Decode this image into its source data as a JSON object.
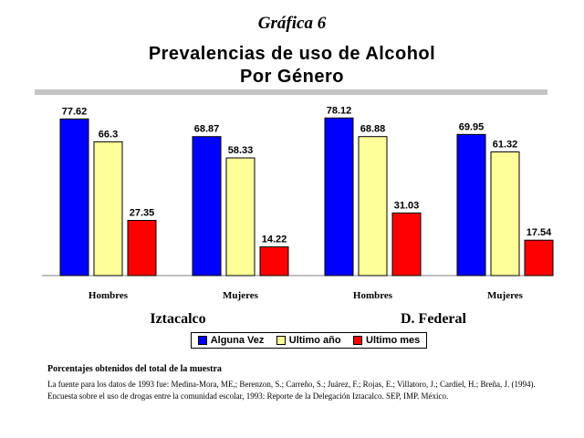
{
  "figure_label": "Gráfica 6",
  "title_line1": "Prevalencias de uso de Alcohol",
  "title_line2": "Por Género",
  "legend": [
    "Alguna Vez",
    "Ultimo año",
    "Ultimo mes"
  ],
  "notes": {
    "heading": "Porcentajes obtenidos del total de la muestra",
    "source": "La fuente para los datos de 1993 fue: Medina-Mora, ME,; Berenzon, S.; Carreño, S.; Juárez, F.; Rojas, E.; Villatoro, J.; Cardiel, H.; Breña, J. (1994). Encuesta sobre el uso de drogas entre la comunidad escolar, 1993: Reporte de la Delegación Iztacalco. SEP, IMP. México."
  },
  "chart_data": {
    "type": "bar",
    "title": "Prevalencias de uso de Alcohol Por Género",
    "categories": [
      "Hombres",
      "Mujeres",
      "Hombres",
      "Mujeres"
    ],
    "groups": [
      "Iztacalco",
      "D. Federal"
    ],
    "series": [
      {
        "name": "Alguna Vez",
        "color": "#0000ff",
        "values": [
          77.62,
          68.87,
          78.12,
          69.95
        ]
      },
      {
        "name": "Ultimo año",
        "color": "#ffff99",
        "values": [
          66.3,
          58.33,
          68.88,
          61.32
        ]
      },
      {
        "name": "Ultimo mes",
        "color": "#ff0000",
        "values": [
          27.35,
          14.22,
          31.03,
          17.54
        ]
      }
    ],
    "ylim": [
      0,
      90
    ],
    "grid": false,
    "legend_position": "bottom",
    "data_labels": true
  }
}
